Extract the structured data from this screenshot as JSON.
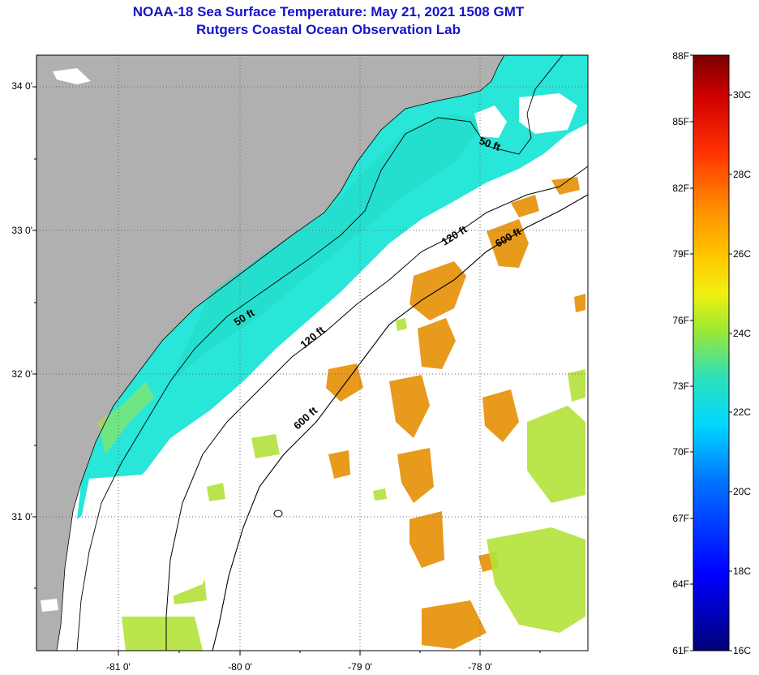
{
  "title_line1": "NOAA-18 Sea Surface Temperature:  May 21, 2021 1508 GMT",
  "title_line2": "Rutgers Coastal Ocean Observation Lab",
  "map": {
    "lat_ticks": [
      {
        "label": "34 0'",
        "value": 34
      },
      {
        "label": "33 0'",
        "value": 33
      },
      {
        "label": "32 0'",
        "value": 32
      },
      {
        "label": "31 0'",
        "value": 31
      }
    ],
    "lon_ticks": [
      {
        "label": "-81 0'",
        "value": -81
      },
      {
        "label": "-80 0'",
        "value": -80
      },
      {
        "label": "-79 0'",
        "value": -79
      },
      {
        "label": "-78 0'",
        "value": -78
      }
    ],
    "contour_labels": [
      {
        "text": "50 ft",
        "isobath": "50"
      },
      {
        "text": "50 ft",
        "isobath": "50"
      },
      {
        "text": "120 ft",
        "isobath": "120"
      },
      {
        "text": "120 ft",
        "isobath": "120"
      },
      {
        "text": "600 ft",
        "isobath": "600"
      },
      {
        "text": "600 ft",
        "isobath": "600"
      }
    ],
    "colors": {
      "land": "#b0b0b0",
      "cloud": "#ffffff",
      "cool_water": "#28e6d8",
      "warm_water": "#e89a1c"
    }
  },
  "colorbar": {
    "fahrenheit_labels": [
      "88F",
      "85F",
      "82F",
      "79F",
      "76F",
      "73F",
      "70F",
      "67F",
      "64F",
      "61F"
    ],
    "celsius_labels": [
      "30C",
      "28C",
      "26C",
      "24C",
      "22C",
      "20C",
      "18C",
      "16C"
    ],
    "min_f": 61,
    "max_f": 88
  }
}
